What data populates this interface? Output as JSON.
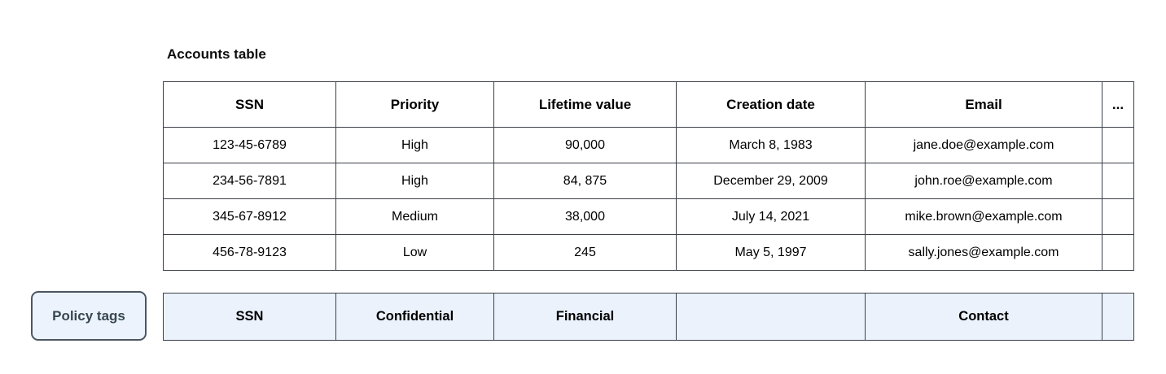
{
  "title": "Accounts table",
  "table": {
    "columns": [
      "SSN",
      "Priority",
      "Lifetime value",
      "Creation date",
      "Email",
      "..."
    ],
    "rows": [
      [
        "123-45-6789",
        "High",
        "90,000",
        "March 8, 1983",
        "jane.doe@example.com",
        ""
      ],
      [
        "234-56-7891",
        "High",
        "84, 875",
        "December 29, 2009",
        "john.roe@example.com",
        ""
      ],
      [
        "345-67-8912",
        "Medium",
        "38,000",
        "July 14, 2021",
        "mike.brown@example.com",
        ""
      ],
      [
        "456-78-9123",
        "Low",
        "245",
        "May 5, 1997",
        "sally.jones@example.com",
        ""
      ]
    ]
  },
  "policy": {
    "button_label": "Policy tags",
    "tags": [
      "SSN",
      "Confidential",
      "Financial",
      "",
      "Contact",
      ""
    ]
  },
  "colors": {
    "background": "#ffffff",
    "grid_line": "#3b3f48",
    "text": "#000000",
    "policy_cell_fill": "#ebf2fc",
    "policy_chip_fill": "#edf3fc",
    "policy_chip_border": "#4b5662",
    "policy_chip_text": "#37474f"
  }
}
